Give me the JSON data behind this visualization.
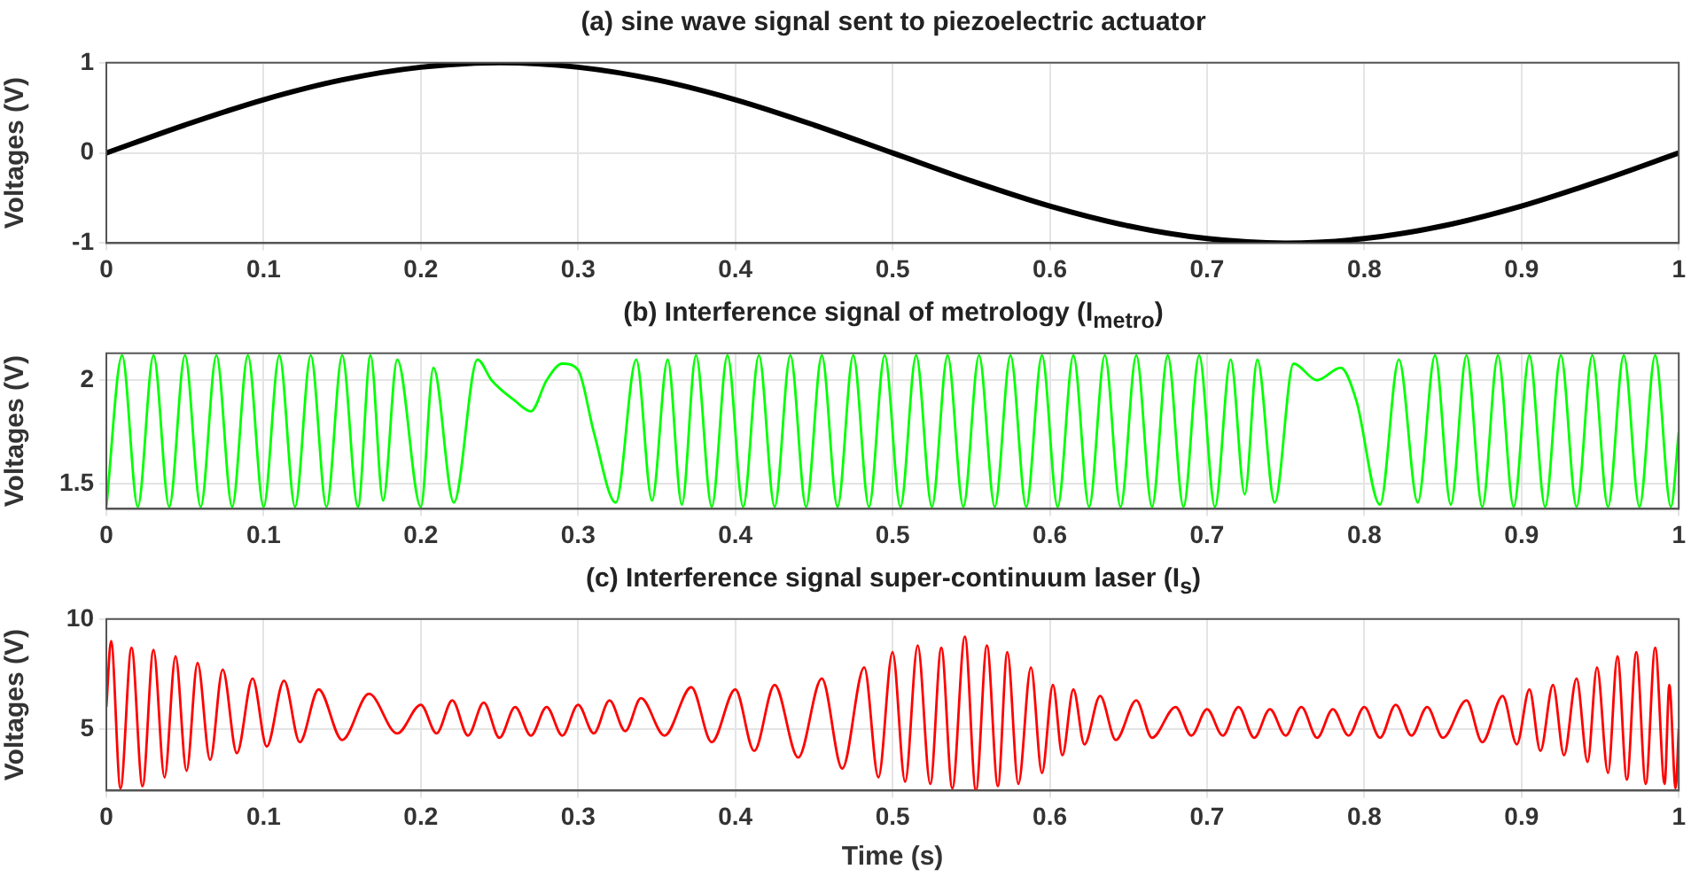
{
  "chart_data": [
    {
      "type": "line",
      "title": "(a)  sine wave signal sent to piezoelectric actuator",
      "ylabel": "Voltages (V)",
      "xlim": [
        0,
        1
      ],
      "xticks": [
        0,
        0.1,
        0.2,
        0.3,
        0.4,
        0.5,
        0.6,
        0.7,
        0.8,
        0.9,
        1
      ],
      "ylim": [
        -1,
        1
      ],
      "yticks": [
        -1,
        0,
        1
      ],
      "grid": true,
      "marker": "none",
      "line_style": "solid",
      "x": [
        0,
        0.05,
        0.1,
        0.15,
        0.2,
        0.25,
        0.3,
        0.35,
        0.4,
        0.45,
        0.5,
        0.55,
        0.6,
        0.65,
        0.7,
        0.75,
        0.8,
        0.85,
        0.9,
        0.95,
        1
      ],
      "series": [
        {
          "color": "#000000",
          "values": [
            0,
            0.31,
            0.59,
            0.81,
            0.95,
            1,
            0.95,
            0.81,
            0.59,
            0.31,
            0,
            -0.31,
            -0.59,
            -0.81,
            -0.95,
            -1,
            -0.95,
            -0.81,
            -0.59,
            -0.31,
            0
          ]
        }
      ]
    },
    {
      "type": "line",
      "title": "(b)  Interference signal of metrology (I$_{metro}$)",
      "ylabel": "Voltages (V)",
      "xlim": [
        0,
        1
      ],
      "xticks": [
        0,
        0.1,
        0.2,
        0.3,
        0.4,
        0.5,
        0.6,
        0.7,
        0.8,
        0.9,
        1
      ],
      "ylim": [
        1.38,
        2.13
      ],
      "yticks": [
        1.5,
        2
      ],
      "grid": true,
      "marker": "none",
      "line_style": "solid",
      "x": [
        0,
        0.01,
        0.02,
        0.03,
        0.04,
        0.05,
        0.06,
        0.07,
        0.08,
        0.09,
        0.1,
        0.11,
        0.12,
        0.13,
        0.14,
        0.15,
        0.16,
        0.168,
        0.176,
        0.185,
        0.2,
        0.208,
        0.221,
        0.236,
        0.245,
        0.26,
        0.27,
        0.28,
        0.29,
        0.3,
        0.31,
        0.324,
        0.337,
        0.347,
        0.357,
        0.366,
        0.375,
        0.385,
        0.395,
        0.405,
        0.415,
        0.425,
        0.435,
        0.445,
        0.455,
        0.465,
        0.475,
        0.485,
        0.495,
        0.505,
        0.515,
        0.525,
        0.535,
        0.545,
        0.555,
        0.565,
        0.575,
        0.585,
        0.595,
        0.605,
        0.615,
        0.625,
        0.635,
        0.645,
        0.655,
        0.665,
        0.675,
        0.685,
        0.695,
        0.705,
        0.715,
        0.724,
        0.732,
        0.743,
        0.755,
        0.77,
        0.785,
        0.795,
        0.81,
        0.822,
        0.834,
        0.845,
        0.855,
        0.865,
        0.875,
        0.885,
        0.895,
        0.905,
        0.915,
        0.925,
        0.935,
        0.945,
        0.955,
        0.965,
        0.975,
        0.985,
        0.995,
        1
      ],
      "series": [
        {
          "color": "#00ff00",
          "values": [
            1.39,
            2.12,
            1.39,
            2.12,
            1.39,
            2.12,
            1.39,
            2.12,
            1.39,
            2.12,
            1.39,
            2.12,
            1.39,
            2.12,
            1.39,
            2.12,
            1.39,
            2.12,
            1.42,
            2.1,
            1.39,
            2.06,
            1.41,
            2.1,
            2.0,
            1.9,
            1.85,
            2.0,
            2.08,
            2.05,
            1.75,
            1.41,
            2.1,
            1.42,
            2.1,
            1.4,
            2.12,
            1.39,
            2.12,
            1.39,
            2.12,
            1.39,
            2.12,
            1.39,
            2.12,
            1.39,
            2.12,
            1.39,
            2.12,
            1.39,
            2.12,
            1.39,
            2.12,
            1.39,
            2.12,
            1.39,
            2.12,
            1.39,
            2.12,
            1.39,
            2.12,
            1.39,
            2.12,
            1.39,
            2.12,
            1.39,
            2.12,
            1.39,
            2.12,
            1.39,
            2.1,
            1.45,
            2.1,
            1.41,
            2.08,
            2.0,
            2.06,
            1.9,
            1.4,
            2.1,
            1.41,
            2.12,
            1.4,
            2.12,
            1.39,
            2.12,
            1.39,
            2.12,
            1.39,
            2.12,
            1.39,
            2.12,
            1.39,
            2.12,
            1.39,
            2.12,
            1.39,
            1.75
          ]
        }
      ]
    },
    {
      "type": "line",
      "title": "(c)  Interference signal super-continuum laser (I$_{s}$)",
      "xlabel": "Time (s)",
      "ylabel": "Voltages (V)",
      "xlim": [
        0,
        1
      ],
      "xticks": [
        0,
        0.1,
        0.2,
        0.3,
        0.4,
        0.5,
        0.6,
        0.7,
        0.8,
        0.9,
        1
      ],
      "ylim": [
        2.2,
        10
      ],
      "yticks": [
        5,
        10
      ],
      "grid": true,
      "marker": "none",
      "line_style": "solid",
      "x": [
        0,
        0.003,
        0.009,
        0.016,
        0.023,
        0.03,
        0.037,
        0.044,
        0.051,
        0.058,
        0.066,
        0.074,
        0.083,
        0.093,
        0.102,
        0.113,
        0.123,
        0.135,
        0.15,
        0.167,
        0.185,
        0.2,
        0.21,
        0.22,
        0.23,
        0.24,
        0.25,
        0.26,
        0.27,
        0.28,
        0.29,
        0.3,
        0.31,
        0.32,
        0.33,
        0.34,
        0.355,
        0.372,
        0.385,
        0.4,
        0.412,
        0.425,
        0.44,
        0.455,
        0.468,
        0.482,
        0.491,
        0.5,
        0.508,
        0.516,
        0.524,
        0.531,
        0.538,
        0.546,
        0.553,
        0.56,
        0.567,
        0.573,
        0.58,
        0.588,
        0.595,
        0.602,
        0.608,
        0.615,
        0.622,
        0.632,
        0.642,
        0.655,
        0.665,
        0.68,
        0.69,
        0.7,
        0.71,
        0.72,
        0.73,
        0.74,
        0.75,
        0.76,
        0.77,
        0.78,
        0.79,
        0.8,
        0.81,
        0.82,
        0.83,
        0.84,
        0.85,
        0.865,
        0.875,
        0.888,
        0.897,
        0.905,
        0.912,
        0.92,
        0.927,
        0.935,
        0.942,
        0.948,
        0.955,
        0.961,
        0.967,
        0.973,
        0.979,
        0.985,
        0.991,
        0.994,
        0.998,
        1
      ],
      "series": [
        {
          "color": "#ff0000",
          "values": [
            6.0,
            9.0,
            2.3,
            8.7,
            2.4,
            8.6,
            2.8,
            8.3,
            3.1,
            8.0,
            3.6,
            7.7,
            3.9,
            7.3,
            4.2,
            7.2,
            4.4,
            6.8,
            4.5,
            6.6,
            4.8,
            6.1,
            4.8,
            6.3,
            4.7,
            6.2,
            4.6,
            6.0,
            4.7,
            6.0,
            4.7,
            6.1,
            4.8,
            6.3,
            4.9,
            6.4,
            4.7,
            6.9,
            4.4,
            6.8,
            4.0,
            7.0,
            3.7,
            7.3,
            3.2,
            7.8,
            2.8,
            8.5,
            2.6,
            8.8,
            2.5,
            8.7,
            2.3,
            9.2,
            2.2,
            8.8,
            2.4,
            8.5,
            2.5,
            7.8,
            3.0,
            7.0,
            3.8,
            6.8,
            4.3,
            6.5,
            4.5,
            6.3,
            4.6,
            6.0,
            4.7,
            5.9,
            4.7,
            6.0,
            4.6,
            5.9,
            4.7,
            6.0,
            4.6,
            5.9,
            4.7,
            6.0,
            4.6,
            6.1,
            4.7,
            6.0,
            4.6,
            6.3,
            4.4,
            6.5,
            4.3,
            6.8,
            4.0,
            7.0,
            3.8,
            7.3,
            3.5,
            7.8,
            3.0,
            8.3,
            2.7,
            8.5,
            2.5,
            8.7,
            2.5,
            7.0,
            2.3,
            5.0
          ]
        }
      ]
    }
  ]
}
